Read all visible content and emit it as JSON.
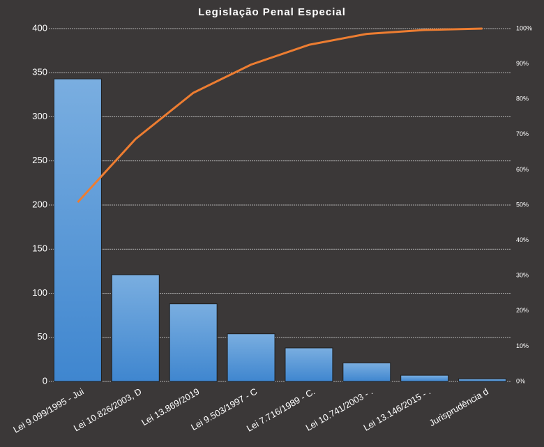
{
  "chart_data": {
    "type": "pareto",
    "title": "Legislação Penal Especial",
    "categories": [
      "Lei 9.099/1995 - Jui",
      "Lei 10.826/2003, D",
      "Lei 13.869/2019",
      "Lei 9.503/1997 - C",
      "Lei 7.716/1989 - C.",
      "Lei 10.741/2003 - .",
      "Lei 13.146/2015 - .",
      "Jurisprudência d"
    ],
    "series": [
      {
        "type": "bar",
        "color": "#5b9bd5",
        "values": [
          343,
          121,
          88,
          54,
          38,
          21,
          7,
          3
        ]
      },
      {
        "type": "line",
        "color": "#ed7d31",
        "axis": "y2",
        "values": [
          50.8,
          68.7,
          81.8,
          89.8,
          95.4,
          98.5,
          99.6,
          100
        ]
      }
    ],
    "ylim": [
      0,
      400
    ],
    "yticks": [
      0,
      50,
      100,
      150,
      200,
      250,
      300,
      350,
      400
    ],
    "y2lim": [
      0,
      100
    ],
    "y2ticks": [
      {
        "value": 0,
        "label": "0%"
      },
      {
        "value": 10,
        "label": "10%"
      },
      {
        "value": 20,
        "label": "20%"
      },
      {
        "value": 30,
        "label": "30%"
      },
      {
        "value": 40,
        "label": "40%"
      },
      {
        "value": 50,
        "label": "50%"
      },
      {
        "value": 60,
        "label": "60%"
      },
      {
        "value": 70,
        "label": "70%"
      },
      {
        "value": 80,
        "label": "80%"
      },
      {
        "value": 90,
        "label": "90%"
      },
      {
        "value": 100,
        "label": "100%"
      }
    ],
    "grid": true
  }
}
